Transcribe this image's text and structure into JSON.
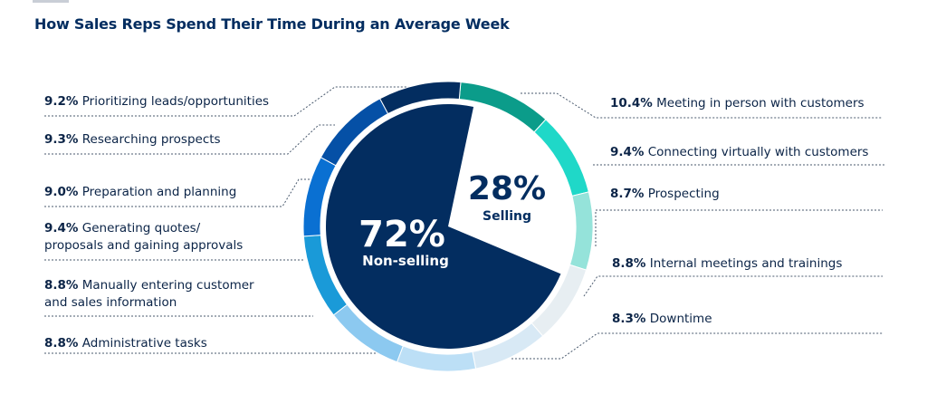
{
  "title": "How Sales Reps Spend Their Time During an Average Week",
  "center": {
    "nonselling_pct": "72%",
    "nonselling_label": "Non-selling",
    "selling_pct": "28%",
    "selling_label": "Selling"
  },
  "colors": {
    "navy": "#032d60",
    "selling_wedge": "#ffffff",
    "text": "#0b2447"
  },
  "chart_data": {
    "type": "pie",
    "title": "How Sales Reps Spend Their Time During an Average Week",
    "groups": [
      {
        "name": "Selling",
        "value": 28
      },
      {
        "name": "Non-selling",
        "value": 72
      }
    ],
    "slices": [
      {
        "label": "Meeting in person with customers",
        "value": 10.4,
        "group": "Selling",
        "color": "#0b9c8a",
        "pct": "10.4%"
      },
      {
        "label": "Connecting virtually with customers",
        "value": 9.4,
        "group": "Selling",
        "color": "#1fd8c8",
        "pct": "9.4%"
      },
      {
        "label": "Prospecting",
        "value": 8.7,
        "group": "Selling",
        "color": "#95e3da",
        "pct": "8.7%"
      },
      {
        "label": "Internal meetings and trainings",
        "value": 8.8,
        "group": "Non-selling",
        "color": "#e7eef2",
        "pct": "8.8%"
      },
      {
        "label": "Downtime",
        "value": 8.3,
        "group": "Non-selling",
        "color": "#d8e9f5",
        "pct": "8.3%"
      },
      {
        "label": "Administrative tasks",
        "value": 8.8,
        "group": "Non-selling",
        "color": "#bcdff6",
        "pct": "8.8%"
      },
      {
        "label": "Manually entering customer and sales information",
        "value": 8.8,
        "group": "Non-selling",
        "color": "#8cc9f0",
        "pct": "8.8%"
      },
      {
        "label": "Generating quotes/ proposals and gaining approvals",
        "value": 9.4,
        "group": "Non-selling",
        "color": "#1a9ad8",
        "pct": "9.4%"
      },
      {
        "label": "Preparation and planning",
        "value": 9.0,
        "group": "Non-selling",
        "color": "#0a70d2",
        "pct": "9.0%"
      },
      {
        "label": "Researching prospects",
        "value": 9.3,
        "group": "Non-selling",
        "color": "#0550a6",
        "pct": "9.3%"
      },
      {
        "label": "Prioritizing leads/opportunities",
        "value": 9.2,
        "group": "Non-selling",
        "color": "#032d60",
        "pct": "9.2%"
      }
    ]
  },
  "labels": {
    "prioritizing": {
      "pct": "9.2%",
      "text": "Prioritizing leads/opportunities"
    },
    "researching": {
      "pct": "9.3%",
      "text": "Researching prospects"
    },
    "preparation": {
      "pct": "9.0%",
      "text": "Preparation and planning"
    },
    "quotes": {
      "pct": "9.4%",
      "text1": "Generating quotes/",
      "text2": "proposals and gaining approvals"
    },
    "manual": {
      "pct": "8.8%",
      "text1": "Manually entering customer",
      "text2": "and sales information"
    },
    "admin": {
      "pct": "8.8%",
      "text": "Administrative tasks"
    },
    "meeting": {
      "pct": "10.4%",
      "text": "Meeting in person with customers"
    },
    "virtual": {
      "pct": "9.4%",
      "text": "Connecting virtually with customers"
    },
    "prospecting": {
      "pct": "8.7%",
      "text": "Prospecting"
    },
    "internal": {
      "pct": "8.8%",
      "text": "Internal meetings and trainings"
    },
    "downtime": {
      "pct": "8.3%",
      "text": "Downtime"
    }
  }
}
